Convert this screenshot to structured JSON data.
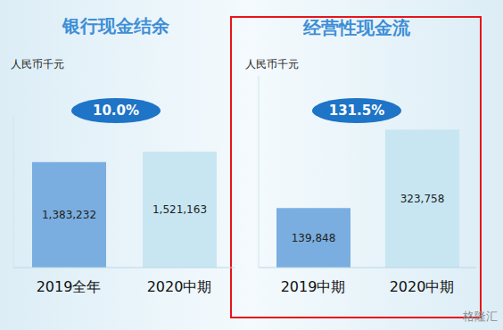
{
  "chart_data": [
    {
      "type": "bar",
      "title": "银行现金结余",
      "subtitle": "人民币千元",
      "annotation": "10.0%",
      "categories": [
        "2019全年",
        "2020中期"
      ],
      "values": [
        1383232,
        1521163
      ],
      "value_labels": [
        "1,383,232",
        "1,521,163"
      ],
      "colors": [
        "#7aaee0",
        "#c8e6f2"
      ],
      "ylim": [
        0,
        2000000
      ],
      "yticks": [],
      "data_labels": true,
      "tick_labels": "x",
      "grid": false
    },
    {
      "type": "bar",
      "title": "经营性现金流",
      "subtitle": "人民币千元",
      "annotation": "131.5%",
      "categories": [
        "2019中期",
        "2020中期"
      ],
      "values": [
        139848,
        323758
      ],
      "value_labels": [
        "139,848",
        "323,758"
      ],
      "colors": [
        "#7aaee0",
        "#c8e6f2"
      ],
      "ylim": [
        0,
        450000
      ],
      "yticks": [],
      "data_labels": true,
      "tick_labels": "x",
      "grid": false
    }
  ],
  "watermark": "格隆汇"
}
